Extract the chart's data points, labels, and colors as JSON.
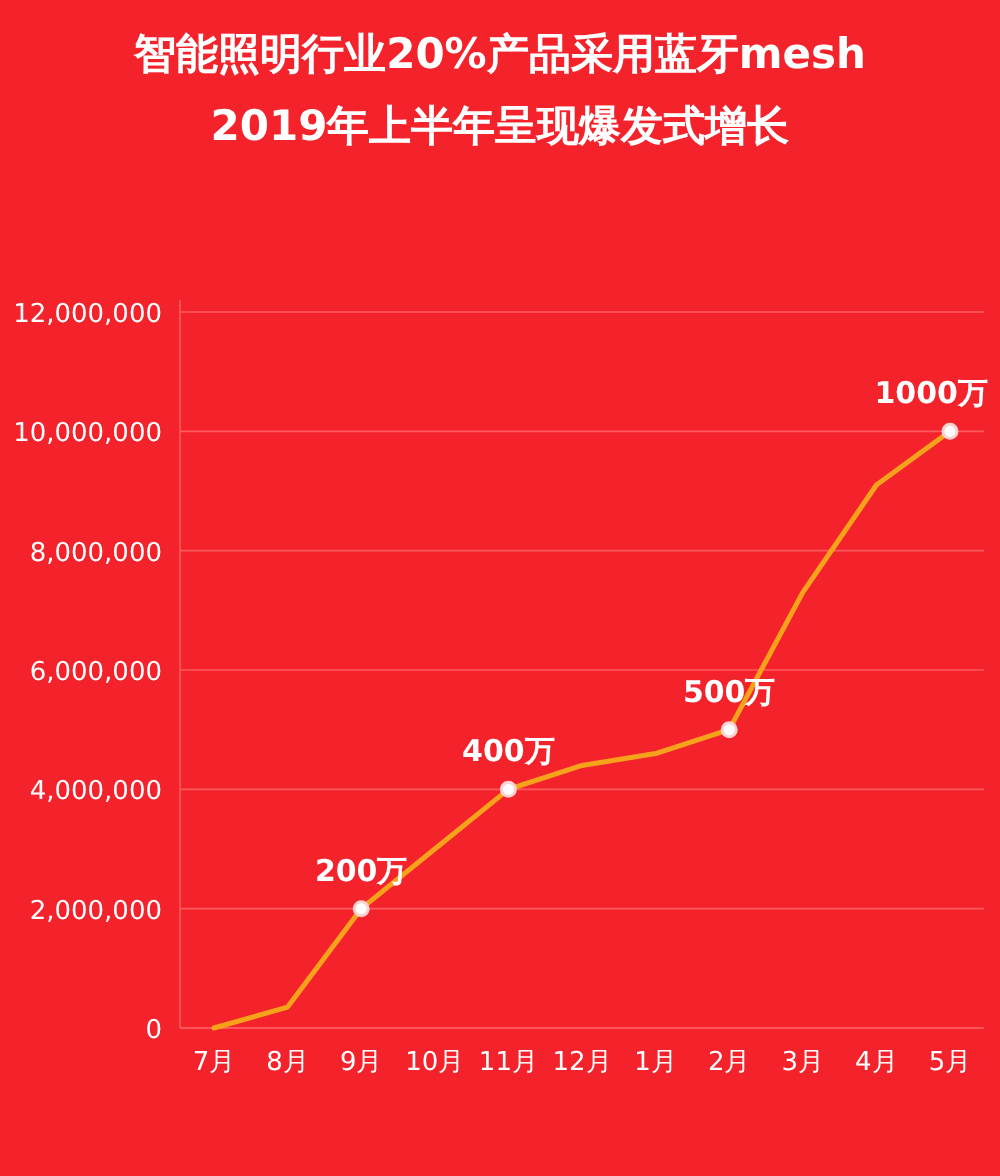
{
  "chart_data": {
    "type": "line",
    "title": "智能照明行业20%产品采用蓝牙mesh",
    "subtitle": "2019年上半年呈现爆发式增长",
    "categories": [
      "7月",
      "8月",
      "9月",
      "10月",
      "11月",
      "12月",
      "1月",
      "2月",
      "3月",
      "4月",
      "5月"
    ],
    "series": [
      {
        "color": "#f7a21b",
        "marker": "none",
        "values": [
          0,
          350000,
          2000000,
          3000000,
          4000000,
          4400000,
          4600000,
          5000000,
          7300000,
          9100000,
          10000000
        ]
      },
      {
        "type": "scatter",
        "color": "#ffffff",
        "marker": "circle",
        "values": [
          null,
          null,
          2000000,
          null,
          4000000,
          null,
          null,
          5000000,
          null,
          null,
          10000000
        ]
      }
    ],
    "annotations": [
      {
        "text": "200万",
        "x": "9月",
        "y": 2000000
      },
      {
        "text": "400万",
        "x": "11月",
        "y": 4000000
      },
      {
        "text": "500万",
        "x": "2月",
        "y": 5000000
      },
      {
        "text": "1000万",
        "x": "5月",
        "y": 10000000
      }
    ],
    "ylim": [
      0,
      12000000
    ],
    "yticks": [
      0,
      {
        "value": 2000000,
        "label": "2,000,000"
      },
      {
        "value": 4000000,
        "label": "4,000,000"
      },
      {
        "value": 6000000,
        "label": "6,000,000"
      },
      {
        "value": 8000000,
        "label": "8,000,000"
      },
      {
        "value": 10000000,
        "label": "10,000,000"
      },
      {
        "value": 12000000,
        "label": "12,000,000"
      }
    ],
    "grid": "y"
  }
}
